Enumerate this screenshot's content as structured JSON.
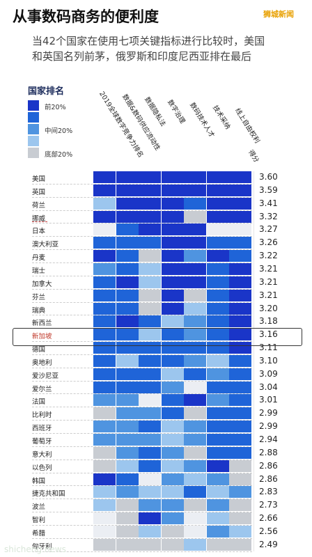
{
  "title": "从事数码商务的便利度",
  "watermark_top": "狮城新闻",
  "watermark_bottom": "shicheng.news",
  "subtitle_lines": [
    "当42个国家在使用七项关键指标进行比较时，美国",
    "和英国名列前茅，俄罗斯和印度尼西亚排在最后"
  ],
  "legend": {
    "title": "国家排名",
    "items": [
      {
        "label": "前20%",
        "color": "#1a35c8"
      },
      {
        "label": "",
        "color": "#1f64d8"
      },
      {
        "label": "中间20%",
        "color": "#4f94e0"
      },
      {
        "label": "",
        "color": "#9cc6ee"
      },
      {
        "label": "底部20%",
        "color": "#c8ccd2"
      }
    ]
  },
  "colors": [
    "#1a35c8",
    "#1f64d8",
    "#4f94e0",
    "#9cc6ee",
    "#c8ccd2",
    "#ebeef3"
  ],
  "chart_data": {
    "type": "heatmap",
    "columns": [
      "2019全球数字竞争力排名",
      "数据&数码供应流动性",
      "数据隐私法",
      "数字治理",
      "数码技术人才",
      "技术采纳",
      "线上自由权利"
    ],
    "score_header": "得分",
    "rows": [
      {
        "country": "美国",
        "score": "3.60",
        "levels": [
          0,
          0,
          0,
          0,
          0,
          0,
          0
        ]
      },
      {
        "country": "英国",
        "score": "3.59",
        "levels": [
          0,
          0,
          0,
          0,
          0,
          0,
          0
        ]
      },
      {
        "country": "荷兰",
        "score": "3.41",
        "levels": [
          3,
          0,
          0,
          0,
          1,
          0,
          0
        ]
      },
      {
        "country": "挪威",
        "score": "3.32",
        "levels": [
          0,
          0,
          0,
          0,
          4,
          0,
          0
        ]
      },
      {
        "country": "日本",
        "score": "3.27",
        "levels": [
          5,
          1,
          0,
          0,
          0,
          5,
          5
        ]
      },
      {
        "country": "澳大利亚",
        "score": "3.26",
        "levels": [
          1,
          1,
          1,
          0,
          0,
          1,
          1
        ]
      },
      {
        "country": "丹麦",
        "score": "3.22",
        "levels": [
          0,
          1,
          4,
          0,
          2,
          0,
          1
        ]
      },
      {
        "country": "瑞士",
        "score": "3.21",
        "levels": [
          2,
          1,
          3,
          0,
          0,
          1,
          0
        ]
      },
      {
        "country": "加拿大",
        "score": "3.21",
        "levels": [
          1,
          0,
          3,
          0,
          0,
          1,
          0
        ]
      },
      {
        "country": "芬兰",
        "score": "3.21",
        "levels": [
          1,
          1,
          4,
          0,
          4,
          1,
          0
        ]
      },
      {
        "country": "瑞典",
        "score": "3.20",
        "levels": [
          1,
          1,
          4,
          0,
          3,
          1,
          0
        ]
      },
      {
        "country": "新西兰",
        "score": "3.18",
        "levels": [
          1,
          0,
          1,
          3,
          2,
          1,
          0
        ]
      },
      {
        "country": "新加坡",
        "score": "3.16",
        "levels": [
          1,
          1,
          3,
          1,
          2,
          1,
          0
        ]
      },
      {
        "country": "德国",
        "score": "3.11",
        "levels": [
          1,
          1,
          1,
          1,
          1,
          1,
          0
        ]
      },
      {
        "country": "奥地利",
        "score": "3.10",
        "levels": [
          1,
          3,
          1,
          1,
          2,
          3,
          1
        ]
      },
      {
        "country": "爱沙尼亚",
        "score": "3.09",
        "levels": [
          1,
          1,
          1,
          3,
          1,
          2,
          1
        ]
      },
      {
        "country": "爱尔兰",
        "score": "3.04",
        "levels": [
          1,
          1,
          1,
          2,
          5,
          1,
          1
        ]
      },
      {
        "country": "法国",
        "score": "3.01",
        "levels": [
          2,
          2,
          5,
          1,
          0,
          2,
          1
        ]
      },
      {
        "country": "比利时",
        "score": "2.99",
        "levels": [
          4,
          2,
          2,
          1,
          4,
          1,
          1
        ]
      },
      {
        "country": "西班牙",
        "score": "2.99",
        "levels": [
          2,
          2,
          1,
          3,
          2,
          1,
          1
        ]
      },
      {
        "country": "葡萄牙",
        "score": "2.94",
        "levels": [
          2,
          2,
          2,
          3,
          2,
          1,
          1
        ]
      },
      {
        "country": "意大利",
        "score": "2.88",
        "levels": [
          4,
          2,
          1,
          2,
          4,
          1,
          1
        ]
      },
      {
        "country": "以色列",
        "score": "2.86",
        "levels": [
          4,
          3,
          1,
          3,
          2,
          0,
          4
        ]
      },
      {
        "country": "韩国",
        "score": "2.86",
        "levels": [
          0,
          1,
          5,
          2,
          3,
          2,
          4
        ]
      },
      {
        "country": "捷克共和国",
        "score": "2.83",
        "levels": [
          3,
          2,
          3,
          3,
          1,
          3,
          2
        ]
      },
      {
        "country": "波兰",
        "score": "2.73",
        "levels": [
          3,
          4,
          2,
          2,
          4,
          2,
          4
        ]
      },
      {
        "country": "智利",
        "score": "2.66",
        "levels": [
          5,
          4,
          0,
          2,
          5,
          3,
          4
        ]
      },
      {
        "country": "希腊",
        "score": "2.56",
        "levels": [
          5,
          4,
          3,
          4,
          5,
          2,
          3
        ]
      },
      {
        "country": "匈牙利",
        "score": "2.49",
        "levels": [
          4,
          4,
          4,
          4,
          3,
          4,
          4
        ]
      }
    ]
  }
}
